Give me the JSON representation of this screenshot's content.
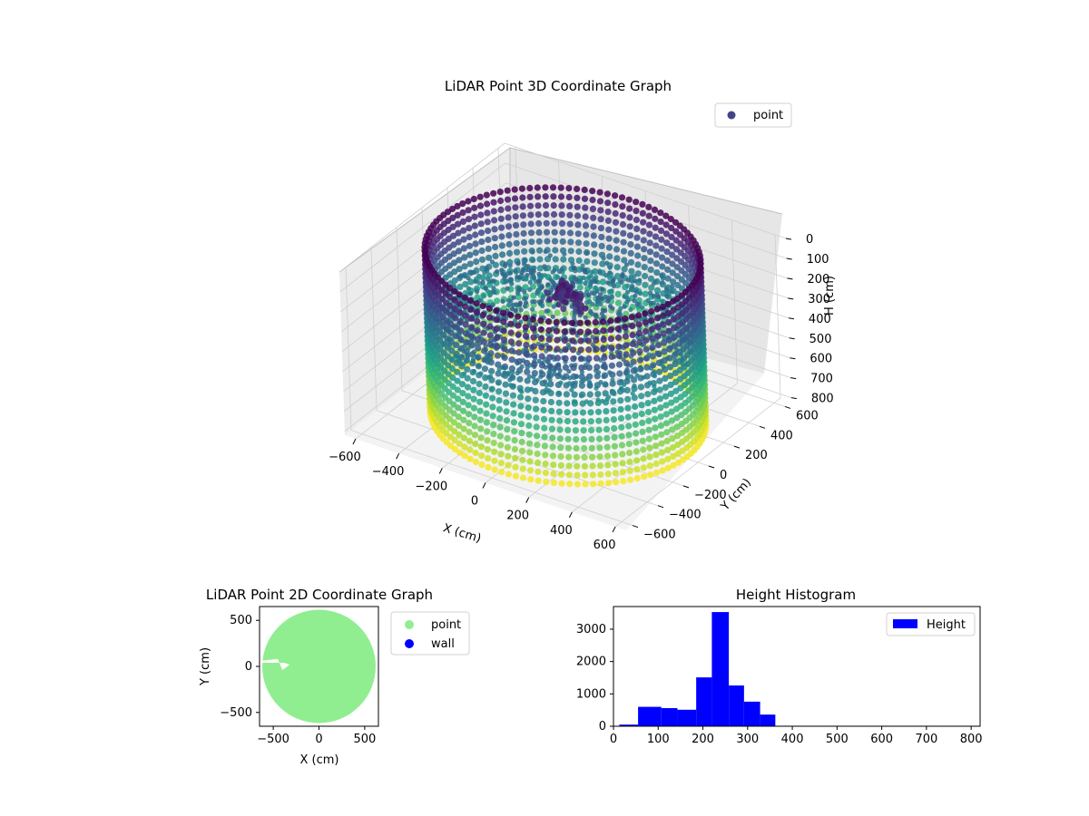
{
  "chart_data": [
    {
      "type": "scatter",
      "projection": "3d",
      "title": "LiDAR Point 3D Coordinate Graph",
      "xlabel": "X (cm)",
      "ylabel": "Y (cm)",
      "zlabel": "H (cm)",
      "xlim": [
        -650,
        650
      ],
      "ylim": [
        -650,
        650
      ],
      "zlim": [
        0,
        820
      ],
      "z_inverted": true,
      "x_ticks": [
        "−600",
        "−400",
        "−200",
        "0",
        "200",
        "400",
        "600"
      ],
      "y_ticks": [
        "−600",
        "−400",
        "−200",
        "0",
        "200",
        "400",
        "600"
      ],
      "z_ticks": [
        "0",
        "100",
        "200",
        "300",
        "400",
        "500",
        "600",
        "700",
        "800"
      ],
      "grid": true,
      "legend": {
        "placement": "upper right",
        "entries": [
          "point"
        ]
      },
      "colormap": "viridis",
      "series": [
        {
          "name": "point",
          "legend_color": "#414487",
          "description_ring": {
            "radius": 550,
            "h_top": 0,
            "h_bottom": 820
          },
          "central_peak": {
            "x": 0,
            "y": 0,
            "h": 160
          }
        }
      ]
    },
    {
      "type": "scatter",
      "title": "LiDAR Point 2D Coordinate Graph",
      "xlabel": "X (cm)",
      "ylabel": "Y (cm)",
      "xlim": [
        -650,
        650
      ],
      "ylim": [
        -650,
        650
      ],
      "x_ticks": [
        "−500",
        "0",
        "500"
      ],
      "y_ticks": [
        "500",
        "0",
        "−500"
      ],
      "legend": {
        "placement": "outside right",
        "entries": [
          {
            "name": "point",
            "color": "#90ee90"
          },
          {
            "name": "wall",
            "color": "#0000ff"
          }
        ]
      }
    },
    {
      "type": "bar",
      "title": "Height Histogram",
      "xlabel": "",
      "ylabel": "",
      "xlim": [
        0,
        820
      ],
      "ylim": [
        0,
        3700
      ],
      "x_ticks": [
        "0",
        "100",
        "200",
        "300",
        "400",
        "500",
        "600",
        "700",
        "800"
      ],
      "y_ticks": [
        "0",
        "1000",
        "2000",
        "3000"
      ],
      "legend": {
        "placement": "upper right",
        "entries": [
          {
            "name": "Height",
            "color": "#0000ff"
          }
        ]
      },
      "bins": [
        {
          "x0": 0,
          "x1": 13,
          "value": 10
        },
        {
          "x0": 13,
          "x1": 55,
          "value": 50
        },
        {
          "x0": 55,
          "x1": 107,
          "value": 600
        },
        {
          "x0": 107,
          "x1": 143,
          "value": 560
        },
        {
          "x0": 143,
          "x1": 185,
          "value": 510
        },
        {
          "x0": 185,
          "x1": 220,
          "value": 1510
        },
        {
          "x0": 220,
          "x1": 258,
          "value": 3530
        },
        {
          "x0": 258,
          "x1": 292,
          "value": 1260
        },
        {
          "x0": 292,
          "x1": 328,
          "value": 760
        },
        {
          "x0": 328,
          "x1": 362,
          "value": 360
        },
        {
          "x0": 362,
          "x1": 820,
          "value": 15
        }
      ]
    }
  ]
}
